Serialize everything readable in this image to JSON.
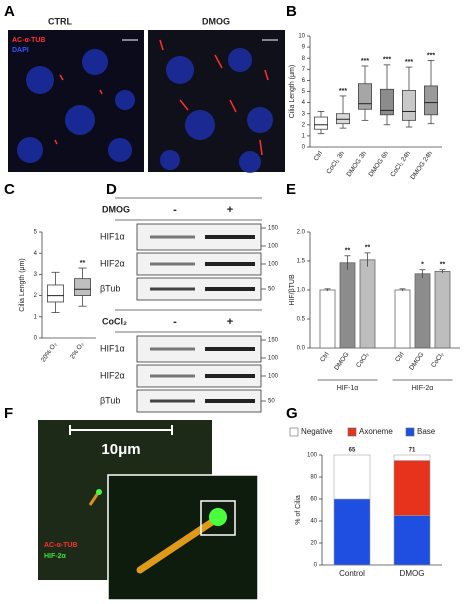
{
  "figure": {
    "panel_letters": [
      "A",
      "B",
      "C",
      "D",
      "E",
      "F",
      "G"
    ],
    "panel_a": {
      "conditions": [
        "CTRL",
        "DMOG"
      ],
      "stains": [
        "AC-α-TUB",
        "DAPI"
      ]
    },
    "panel_d": {
      "blots": [
        {
          "treatment": "DMOG",
          "signs": [
            "-",
            "+"
          ],
          "rows": [
            {
              "label": "HIF1α",
              "markers": [
                150,
                100
              ]
            },
            {
              "label": "HIF2α",
              "markers": [
                100
              ]
            },
            {
              "label": "βTub",
              "markers": [
                50
              ]
            }
          ]
        },
        {
          "treatment": "CoCl₂",
          "signs": [
            "-",
            "+"
          ],
          "rows": [
            {
              "label": "HIF1α",
              "markers": [
                150,
                100
              ]
            },
            {
              "label": "HIF2α",
              "markers": [
                100
              ]
            },
            {
              "label": "βTub",
              "markers": [
                50
              ]
            }
          ]
        }
      ]
    },
    "panel_f": {
      "scale": "10μm",
      "stains": [
        "AC-α-TUB",
        "HIF-2α"
      ]
    }
  },
  "chart_data": [
    {
      "type": "box",
      "ylabel": "Cilia Length (μm)",
      "categories": [
        "Ctrl",
        "CoCl₂ 3h",
        "DMOG 3h",
        "DMOG 6h",
        "CoCl₂ 24h",
        "DMOG 24h"
      ],
      "boxes": [
        {
          "min": 1.2,
          "q1": 1.6,
          "median": 2.0,
          "q3": 2.7,
          "max": 3.2
        },
        {
          "min": 1.7,
          "q1": 2.1,
          "median": 2.5,
          "q3": 3.0,
          "max": 4.6
        },
        {
          "min": 2.4,
          "q1": 3.4,
          "median": 3.9,
          "q3": 5.7,
          "max": 7.3
        },
        {
          "min": 2.0,
          "q1": 2.9,
          "median": 3.3,
          "q3": 5.2,
          "max": 7.4
        },
        {
          "min": 1.8,
          "q1": 2.4,
          "median": 3.2,
          "q3": 5.1,
          "max": 7.2
        },
        {
          "min": 2.1,
          "q1": 2.9,
          "median": 4.0,
          "q3": 5.5,
          "max": 7.8
        }
      ],
      "colors": [
        "#ffffff",
        "#d9d9d9",
        "#a6a6a6",
        "#8c8c8c",
        "#c8c8c8",
        "#9a9a9a"
      ],
      "annotations": [
        null,
        "***",
        "***",
        "***",
        "***",
        "***"
      ],
      "ylim": [
        0,
        10
      ],
      "yticks": [
        0,
        1,
        2,
        3,
        4,
        5,
        6,
        7,
        8,
        9,
        10
      ]
    },
    {
      "type": "box",
      "ylabel": "Cilia Length (μm)",
      "categories": [
        "20% O₂",
        "2% O₂"
      ],
      "boxes": [
        {
          "min": 1.2,
          "q1": 1.7,
          "median": 2.0,
          "q3": 2.5,
          "max": 3.1
        },
        {
          "min": 1.5,
          "q1": 2.0,
          "median": 2.3,
          "q3": 2.8,
          "max": 3.3
        }
      ],
      "colors": [
        "#ffffff",
        "#bfbfbf"
      ],
      "annotations": [
        null,
        "**"
      ],
      "ylim": [
        0,
        5
      ],
      "yticks": [
        0,
        1,
        2,
        3,
        4,
        5
      ]
    },
    {
      "type": "grouped_bar",
      "ylabel": "HIF/βTUB",
      "colors": [
        "#ffffff",
        "#8c8c8c",
        "#bdbdbd"
      ],
      "groups": [
        {
          "name": "HIF-1α",
          "categories": [
            "Ctrl",
            "DMOG",
            "CoCl₂"
          ],
          "values": [
            1.0,
            1.47,
            1.52
          ],
          "errors": [
            0.02,
            0.12,
            0.12
          ],
          "annotations": [
            null,
            "**",
            "**"
          ]
        },
        {
          "name": "HIF-2α",
          "categories": [
            "Ctrl",
            "DMOG",
            "CoCl₂"
          ],
          "values": [
            1.0,
            1.28,
            1.32
          ],
          "errors": [
            0.02,
            0.07,
            0.03
          ],
          "annotations": [
            null,
            "*",
            "**"
          ]
        }
      ],
      "ylim": [
        0,
        2
      ],
      "yticks": [
        {
          "value": 0,
          "label": "0.0"
        },
        0.5,
        {
          "value": 1,
          "label": "1.0"
        },
        1.5,
        {
          "value": 2,
          "label": "2.0"
        }
      ]
    },
    {
      "type": "stacked_bar",
      "ylabel": "% of Cilia",
      "categories": [
        "Control",
        "DMOG"
      ],
      "series": [
        {
          "name": "Base",
          "color": "#1f4fe0",
          "values": [
            60,
            45
          ]
        },
        {
          "name": "Axoneme",
          "color": "#e8331c",
          "values": [
            0,
            50
          ]
        },
        {
          "name": "Negative",
          "color": "#ffffff",
          "values": [
            40,
            5
          ]
        }
      ],
      "annotations": [
        "65",
        "71"
      ],
      "ylim": [
        0,
        100
      ],
      "yticks": [
        0,
        20,
        40,
        60,
        80,
        100
      ]
    }
  ]
}
